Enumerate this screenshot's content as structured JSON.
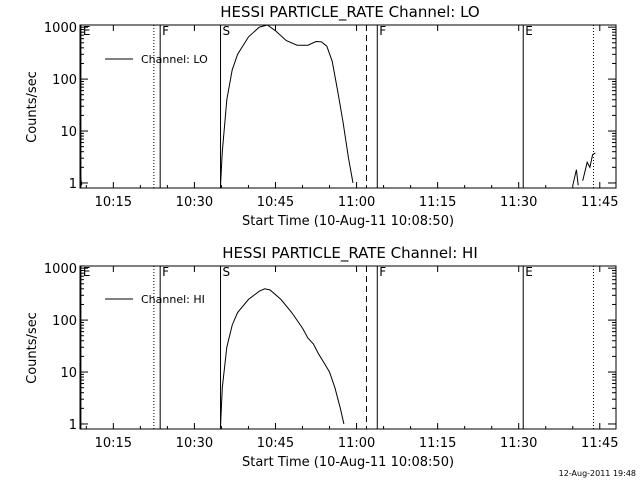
{
  "figure": {
    "footer_timestamp": "12-Aug-2011 19:48"
  },
  "chart_data": [
    {
      "type": "line",
      "title": "HESSI PARTICLE_RATE Channel: LO",
      "xlabel": "Start Time (10-Aug-11 10:08:50)",
      "ylabel": "Counts/sec",
      "yscale": "log",
      "xlim": [
        "10:08:50",
        "11:48:00"
      ],
      "ylim": [
        0.8,
        1100
      ],
      "x_tick_labels": [
        "10:15",
        "10:30",
        "10:45",
        "11:00",
        "11:15",
        "11:30",
        "11:45"
      ],
      "y_tick_labels": [
        {
          "value": 1,
          "label": "1"
        },
        {
          "value": 10,
          "label": "10"
        },
        {
          "value": 100,
          "label": "100"
        },
        {
          "value": 1000,
          "label": "1000"
        }
      ],
      "legend": {
        "position": "top-left",
        "entries": [
          "Channel: LO"
        ]
      },
      "event_markers": [
        {
          "time": "10:09:00",
          "label": "E",
          "style": "solid"
        },
        {
          "time": "10:22:30",
          "label": "",
          "style": "dotted"
        },
        {
          "time": "10:23:40",
          "label": "F",
          "style": "solid"
        },
        {
          "time": "10:34:50",
          "label": "S",
          "style": "solid"
        },
        {
          "time": "11:01:50",
          "label": "",
          "style": "dashed"
        },
        {
          "time": "11:03:50",
          "label": "F",
          "style": "solid"
        },
        {
          "time": "11:30:50",
          "label": "E",
          "style": "solid"
        },
        {
          "time": "11:43:50",
          "label": "",
          "style": "dotted"
        }
      ],
      "series": [
        {
          "name": "Channel: LO",
          "segments": [
            [
              {
                "t": "10:08:50",
                "v": 1.6
              },
              {
                "t": "10:09:10",
                "v": 0.9
              }
            ],
            [
              {
                "t": "10:34:50",
                "v": 0.9
              },
              {
                "t": "10:35:10",
                "v": 4
              },
              {
                "t": "10:36:00",
                "v": 40
              },
              {
                "t": "10:37:00",
                "v": 150
              },
              {
                "t": "10:38:00",
                "v": 300
              },
              {
                "t": "10:40:00",
                "v": 650
              },
              {
                "t": "10:42:00",
                "v": 1000
              },
              {
                "t": "10:43:30",
                "v": 1100
              },
              {
                "t": "10:45:00",
                "v": 850
              },
              {
                "t": "10:47:00",
                "v": 550
              },
              {
                "t": "10:49:00",
                "v": 450
              },
              {
                "t": "10:51:00",
                "v": 450
              },
              {
                "t": "10:52:30",
                "v": 530
              },
              {
                "t": "10:53:30",
                "v": 520
              },
              {
                "t": "10:54:30",
                "v": 430
              },
              {
                "t": "10:55:30",
                "v": 220
              },
              {
                "t": "10:56:30",
                "v": 60
              },
              {
                "t": "10:57:30",
                "v": 15
              },
              {
                "t": "10:58:30",
                "v": 3
              },
              {
                "t": "10:59:20",
                "v": 1
              }
            ],
            [
              {
                "t": "11:40:00",
                "v": 0.9
              },
              {
                "t": "11:40:40",
                "v": 1.8
              },
              {
                "t": "11:41:00",
                "v": 0.9
              }
            ],
            [
              {
                "t": "11:41:50",
                "v": 1.1
              },
              {
                "t": "11:42:40",
                "v": 2.5
              },
              {
                "t": "11:43:10",
                "v": 2.0
              },
              {
                "t": "11:43:40",
                "v": 3.5
              },
              {
                "t": "11:44:10",
                "v": 3.8
              }
            ]
          ]
        }
      ]
    },
    {
      "type": "line",
      "title": "HESSI PARTICLE_RATE Channel: HI",
      "xlabel": "Start Time (10-Aug-11 10:08:50)",
      "ylabel": "Counts/sec",
      "yscale": "log",
      "xlim": [
        "10:08:50",
        "11:48:00"
      ],
      "ylim": [
        0.8,
        1100
      ],
      "x_tick_labels": [
        "10:15",
        "10:30",
        "10:45",
        "11:00",
        "11:15",
        "11:30",
        "11:45"
      ],
      "y_tick_labels": [
        {
          "value": 1,
          "label": "1"
        },
        {
          "value": 10,
          "label": "10"
        },
        {
          "value": 100,
          "label": "100"
        },
        {
          "value": 1000,
          "label": "1000"
        }
      ],
      "legend": {
        "position": "top-left",
        "entries": [
          "Channel: HI"
        ]
      },
      "event_markers": [
        {
          "time": "10:09:00",
          "label": "E",
          "style": "solid"
        },
        {
          "time": "10:22:30",
          "label": "",
          "style": "dotted"
        },
        {
          "time": "10:23:40",
          "label": "F",
          "style": "solid"
        },
        {
          "time": "10:34:50",
          "label": "S",
          "style": "solid"
        },
        {
          "time": "11:01:50",
          "label": "",
          "style": "dashed"
        },
        {
          "time": "11:03:50",
          "label": "F",
          "style": "solid"
        },
        {
          "time": "11:30:50",
          "label": "E",
          "style": "solid"
        },
        {
          "time": "11:43:50",
          "label": "",
          "style": "dotted"
        }
      ],
      "series": [
        {
          "name": "Channel: HI",
          "segments": [
            [
              {
                "t": "10:34:50",
                "v": 0.9
              },
              {
                "t": "10:35:10",
                "v": 5
              },
              {
                "t": "10:36:00",
                "v": 30
              },
              {
                "t": "10:37:00",
                "v": 80
              },
              {
                "t": "10:38:00",
                "v": 140
              },
              {
                "t": "10:40:00",
                "v": 250
              },
              {
                "t": "10:42:00",
                "v": 360
              },
              {
                "t": "10:43:00",
                "v": 400
              },
              {
                "t": "10:44:00",
                "v": 380
              },
              {
                "t": "10:46:00",
                "v": 250
              },
              {
                "t": "10:48:00",
                "v": 140
              },
              {
                "t": "10:50:00",
                "v": 70
              },
              {
                "t": "10:51:00",
                "v": 45
              },
              {
                "t": "10:52:00",
                "v": 35
              },
              {
                "t": "10:53:00",
                "v": 22
              },
              {
                "t": "10:54:00",
                "v": 15
              },
              {
                "t": "10:55:00",
                "v": 10
              },
              {
                "t": "10:56:00",
                "v": 5
              },
              {
                "t": "10:57:00",
                "v": 2
              },
              {
                "t": "10:57:40",
                "v": 1
              }
            ]
          ]
        }
      ]
    }
  ]
}
